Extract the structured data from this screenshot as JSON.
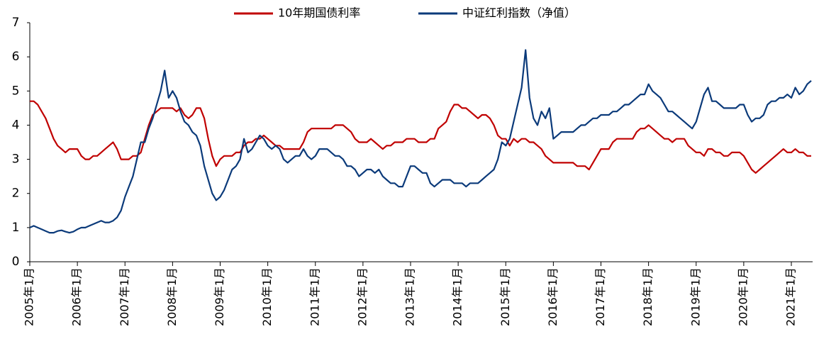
{
  "chart_data": {
    "type": "line",
    "x": [
      "2005-01",
      "2005-02",
      "2005-03",
      "2005-04",
      "2005-05",
      "2005-06",
      "2005-07",
      "2005-08",
      "2005-09",
      "2005-10",
      "2005-11",
      "2005-12",
      "2006-01",
      "2006-02",
      "2006-03",
      "2006-04",
      "2006-05",
      "2006-06",
      "2006-07",
      "2006-08",
      "2006-09",
      "2006-10",
      "2006-11",
      "2006-12",
      "2007-01",
      "2007-02",
      "2007-03",
      "2007-04",
      "2007-05",
      "2007-06",
      "2007-07",
      "2007-08",
      "2007-09",
      "2007-10",
      "2007-11",
      "2007-12",
      "2008-01",
      "2008-02",
      "2008-03",
      "2008-04",
      "2008-05",
      "2008-06",
      "2008-07",
      "2008-08",
      "2008-09",
      "2008-10",
      "2008-11",
      "2008-12",
      "2009-01",
      "2009-02",
      "2009-03",
      "2009-04",
      "2009-05",
      "2009-06",
      "2009-07",
      "2009-08",
      "2009-09",
      "2009-10",
      "2009-11",
      "2009-12",
      "2010-01",
      "2010-02",
      "2010-03",
      "2010-04",
      "2010-05",
      "2010-06",
      "2010-07",
      "2010-08",
      "2010-09",
      "2010-10",
      "2010-11",
      "2010-12",
      "2011-01",
      "2011-02",
      "2011-03",
      "2011-04",
      "2011-05",
      "2011-06",
      "2011-07",
      "2011-08",
      "2011-09",
      "2011-10",
      "2011-11",
      "2011-12",
      "2012-01",
      "2012-02",
      "2012-03",
      "2012-04",
      "2012-05",
      "2012-06",
      "2012-07",
      "2012-08",
      "2012-09",
      "2012-10",
      "2012-11",
      "2012-12",
      "2013-01",
      "2013-02",
      "2013-03",
      "2013-04",
      "2013-05",
      "2013-06",
      "2013-07",
      "2013-08",
      "2013-09",
      "2013-10",
      "2013-11",
      "2013-12",
      "2014-01",
      "2014-02",
      "2014-03",
      "2014-04",
      "2014-05",
      "2014-06",
      "2014-07",
      "2014-08",
      "2014-09",
      "2014-10",
      "2014-11",
      "2014-12",
      "2015-01",
      "2015-02",
      "2015-03",
      "2015-04",
      "2015-05",
      "2015-06",
      "2015-07",
      "2015-08",
      "2015-09",
      "2015-10",
      "2015-11",
      "2015-12",
      "2016-01",
      "2016-02",
      "2016-03",
      "2016-04",
      "2016-05",
      "2016-06",
      "2016-07",
      "2016-08",
      "2016-09",
      "2016-10",
      "2016-11",
      "2016-12",
      "2017-01",
      "2017-02",
      "2017-03",
      "2017-04",
      "2017-05",
      "2017-06",
      "2017-07",
      "2017-08",
      "2017-09",
      "2017-10",
      "2017-11",
      "2017-12",
      "2018-01",
      "2018-02",
      "2018-03",
      "2018-04",
      "2018-05",
      "2018-06",
      "2018-07",
      "2018-08",
      "2018-09",
      "2018-10",
      "2018-11",
      "2018-12",
      "2019-01",
      "2019-02",
      "2019-03",
      "2019-04",
      "2019-05",
      "2019-06",
      "2019-07",
      "2019-08",
      "2019-09",
      "2019-10",
      "2019-11",
      "2019-12",
      "2020-01",
      "2020-02",
      "2020-03",
      "2020-04",
      "2020-05",
      "2020-06",
      "2020-07",
      "2020-08",
      "2020-09",
      "2020-10",
      "2020-11",
      "2020-12",
      "2021-01",
      "2021-02",
      "2021-03",
      "2021-04",
      "2021-05",
      "2021-06"
    ],
    "series": [
      {
        "name": "10年期国债利率",
        "color": "#c00000",
        "values": [
          4.7,
          4.7,
          4.6,
          4.4,
          4.2,
          3.9,
          3.6,
          3.4,
          3.3,
          3.2,
          3.3,
          3.3,
          3.3,
          3.1,
          3.0,
          3.0,
          3.1,
          3.1,
          3.2,
          3.3,
          3.4,
          3.5,
          3.3,
          3.0,
          3.0,
          3.0,
          3.1,
          3.1,
          3.2,
          3.6,
          4.0,
          4.3,
          4.4,
          4.5,
          4.5,
          4.5,
          4.5,
          4.4,
          4.5,
          4.3,
          4.2,
          4.3,
          4.5,
          4.5,
          4.2,
          3.6,
          3.1,
          2.8,
          3.0,
          3.1,
          3.1,
          3.1,
          3.2,
          3.2,
          3.4,
          3.5,
          3.5,
          3.6,
          3.6,
          3.7,
          3.6,
          3.5,
          3.4,
          3.4,
          3.3,
          3.3,
          3.3,
          3.3,
          3.3,
          3.5,
          3.8,
          3.9,
          3.9,
          3.9,
          3.9,
          3.9,
          3.9,
          4.0,
          4.0,
          4.0,
          3.9,
          3.8,
          3.6,
          3.5,
          3.5,
          3.5,
          3.6,
          3.5,
          3.4,
          3.3,
          3.4,
          3.4,
          3.5,
          3.5,
          3.5,
          3.6,
          3.6,
          3.6,
          3.5,
          3.5,
          3.5,
          3.6,
          3.6,
          3.9,
          4.0,
          4.1,
          4.4,
          4.6,
          4.6,
          4.5,
          4.5,
          4.4,
          4.3,
          4.2,
          4.3,
          4.3,
          4.2,
          4.0,
          3.7,
          3.6,
          3.6,
          3.4,
          3.6,
          3.5,
          3.6,
          3.6,
          3.5,
          3.5,
          3.4,
          3.3,
          3.1,
          3.0,
          2.9,
          2.9,
          2.9,
          2.9,
          2.9,
          2.9,
          2.8,
          2.8,
          2.8,
          2.7,
          2.9,
          3.1,
          3.3,
          3.3,
          3.3,
          3.5,
          3.6,
          3.6,
          3.6,
          3.6,
          3.6,
          3.8,
          3.9,
          3.9,
          4.0,
          3.9,
          3.8,
          3.7,
          3.6,
          3.6,
          3.5,
          3.6,
          3.6,
          3.6,
          3.4,
          3.3,
          3.2,
          3.2,
          3.1,
          3.3,
          3.3,
          3.2,
          3.2,
          3.1,
          3.1,
          3.2,
          3.2,
          3.2,
          3.1,
          2.9,
          2.7,
          2.6,
          2.7,
          2.8,
          2.9,
          3.0,
          3.1,
          3.2,
          3.3,
          3.2,
          3.2,
          3.3,
          3.2,
          3.2,
          3.1,
          3.1
        ]
      },
      {
        "name": "中证红利指数（净值）",
        "color": "#0b3a7a",
        "values": [
          1.0,
          1.05,
          1.0,
          0.95,
          0.9,
          0.85,
          0.85,
          0.9,
          0.92,
          0.88,
          0.85,
          0.88,
          0.95,
          1.0,
          1.0,
          1.05,
          1.1,
          1.15,
          1.2,
          1.15,
          1.15,
          1.2,
          1.3,
          1.5,
          1.9,
          2.2,
          2.5,
          3.0,
          3.5,
          3.5,
          3.9,
          4.2,
          4.6,
          5.0,
          5.6,
          4.8,
          5.0,
          4.8,
          4.4,
          4.1,
          4.0,
          3.8,
          3.7,
          3.4,
          2.8,
          2.4,
          2.0,
          1.8,
          1.9,
          2.1,
          2.4,
          2.7,
          2.8,
          3.0,
          3.6,
          3.2,
          3.3,
          3.5,
          3.7,
          3.6,
          3.4,
          3.3,
          3.4,
          3.3,
          3.0,
          2.9,
          3.0,
          3.1,
          3.1,
          3.3,
          3.1,
          3.0,
          3.1,
          3.3,
          3.3,
          3.3,
          3.2,
          3.1,
          3.1,
          3.0,
          2.8,
          2.8,
          2.7,
          2.5,
          2.6,
          2.7,
          2.7,
          2.6,
          2.7,
          2.5,
          2.4,
          2.3,
          2.3,
          2.2,
          2.2,
          2.5,
          2.8,
          2.8,
          2.7,
          2.6,
          2.6,
          2.3,
          2.2,
          2.3,
          2.4,
          2.4,
          2.4,
          2.3,
          2.3,
          2.3,
          2.2,
          2.3,
          2.3,
          2.3,
          2.4,
          2.5,
          2.6,
          2.7,
          3.0,
          3.5,
          3.4,
          3.6,
          4.1,
          4.6,
          5.1,
          6.2,
          4.8,
          4.2,
          4.0,
          4.4,
          4.2,
          4.5,
          3.6,
          3.7,
          3.8,
          3.8,
          3.8,
          3.8,
          3.9,
          4.0,
          4.0,
          4.1,
          4.2,
          4.2,
          4.3,
          4.3,
          4.3,
          4.4,
          4.4,
          4.5,
          4.6,
          4.6,
          4.7,
          4.8,
          4.9,
          4.9,
          5.2,
          5.0,
          4.9,
          4.8,
          4.6,
          4.4,
          4.4,
          4.3,
          4.2,
          4.1,
          4.0,
          3.9,
          4.1,
          4.5,
          4.9,
          5.1,
          4.7,
          4.7,
          4.6,
          4.5,
          4.5,
          4.5,
          4.5,
          4.6,
          4.6,
          4.3,
          4.1,
          4.2,
          4.2,
          4.3,
          4.6,
          4.7,
          4.7,
          4.8,
          4.8,
          4.9,
          4.8,
          5.1,
          4.9,
          5.0,
          5.2,
          5.3
        ]
      }
    ],
    "ylim": [
      0,
      7
    ],
    "yticks": [
      0,
      1,
      2,
      3,
      4,
      5,
      6,
      7
    ],
    "xticks": [
      {
        "value": "2005-01",
        "label": "2005年1月"
      },
      {
        "value": "2006-01",
        "label": "2006年1月"
      },
      {
        "value": "2007-01",
        "label": "2007年1月"
      },
      {
        "value": "2008-01",
        "label": "2008年1月"
      },
      {
        "value": "2009-01",
        "label": "2009年1月"
      },
      {
        "value": "2010-01",
        "label": "2010年1月"
      },
      {
        "value": "2011-01",
        "label": "2011年1月"
      },
      {
        "value": "2012-01",
        "label": "2012年1月"
      },
      {
        "value": "2013-01",
        "label": "2013年1月"
      },
      {
        "value": "2014-01",
        "label": "2014年1月"
      },
      {
        "value": "2015-01",
        "label": "2015年1月"
      },
      {
        "value": "2016-01",
        "label": "2016年1月"
      },
      {
        "value": "2017-01",
        "label": "2017年1月"
      },
      {
        "value": "2018-01",
        "label": "2018年1月"
      },
      {
        "value": "2019-01",
        "label": "2019年1月"
      },
      {
        "value": "2020-01",
        "label": "2020年1月"
      },
      {
        "value": "2021-01",
        "label": "2021年1月"
      }
    ],
    "legend": "top",
    "grid": false
  }
}
